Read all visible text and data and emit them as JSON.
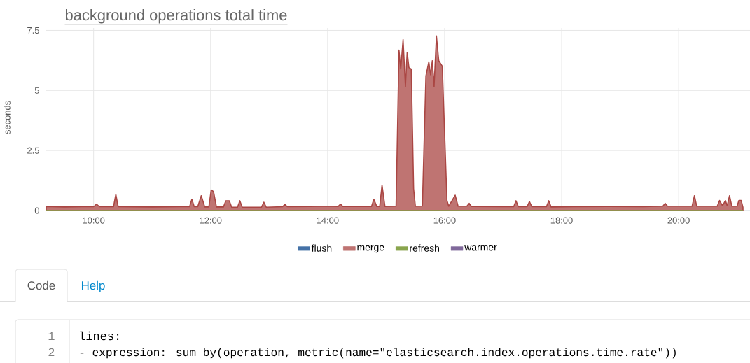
{
  "chart_data": {
    "type": "area",
    "title": "background operations total time",
    "ylabel": "seconds",
    "xlim": [
      9.19,
      21.22
    ],
    "ylim": [
      0,
      7.6
    ],
    "xticks": [
      {
        "value": 10,
        "label": "10:00"
      },
      {
        "value": 12,
        "label": "12:00"
      },
      {
        "value": 14,
        "label": "14:00"
      },
      {
        "value": 16,
        "label": "16:00"
      },
      {
        "value": 18,
        "label": "18:00"
      },
      {
        "value": 20,
        "label": "20:00"
      }
    ],
    "yticks": [
      0,
      2.5,
      5,
      7.5
    ],
    "grid": true,
    "legend": "bottom",
    "series": [
      {
        "name": "flush",
        "type": "line",
        "color": "#4572a7"
      },
      {
        "name": "merge",
        "color": "#aa4643",
        "x": [
          9.19,
          9.5,
          9.8,
          10.0,
          10.05,
          10.1,
          10.34,
          10.38,
          10.42,
          11.0,
          11.5,
          11.64,
          11.68,
          11.72,
          11.78,
          11.84,
          11.9,
          11.97,
          12.01,
          12.05,
          12.1,
          12.22,
          12.26,
          12.32,
          12.36,
          12.46,
          12.5,
          12.54,
          12.87,
          12.91,
          12.95,
          13.23,
          13.27,
          13.31,
          13.7,
          14.0,
          14.18,
          14.22,
          14.26,
          14.75,
          14.79,
          14.84,
          14.89,
          14.93,
          14.98,
          15.17,
          15.22,
          15.25,
          15.29,
          15.33,
          15.36,
          15.39,
          15.43,
          15.47,
          15.5,
          15.62,
          15.68,
          15.73,
          15.76,
          15.79,
          15.82,
          15.86,
          15.9,
          15.96,
          16.04,
          16.07,
          16.18,
          16.23,
          16.38,
          16.42,
          16.46,
          17.0,
          17.18,
          17.22,
          17.26,
          17.41,
          17.45,
          17.49,
          17.74,
          17.78,
          17.82,
          18.2,
          18.8,
          19.4,
          19.73,
          19.77,
          19.81,
          20.23,
          20.27,
          20.31,
          20.66,
          20.7,
          20.75,
          20.8,
          20.83,
          20.87,
          20.91,
          21.0,
          21.03,
          21.07,
          21.1
        ],
        "values": [
          0.17,
          0.15,
          0.16,
          0.16,
          0.27,
          0.16,
          0.16,
          0.67,
          0.16,
          0.15,
          0.16,
          0.16,
          0.47,
          0.16,
          0.16,
          0.62,
          0.15,
          0.15,
          0.86,
          0.79,
          0.15,
          0.15,
          0.41,
          0.41,
          0.14,
          0.14,
          0.41,
          0.14,
          0.14,
          0.35,
          0.14,
          0.16,
          0.26,
          0.16,
          0.17,
          0.18,
          0.17,
          0.27,
          0.17,
          0.17,
          0.47,
          0.17,
          0.17,
          1.06,
          0.17,
          0.18,
          6.68,
          5.89,
          7.12,
          5.16,
          6.59,
          5.95,
          5.89,
          0.91,
          0.18,
          0.19,
          5.6,
          6.19,
          5.65,
          6.24,
          5.16,
          7.27,
          6.24,
          6.01,
          0.42,
          0.18,
          0.64,
          0.18,
          0.18,
          0.3,
          0.17,
          0.16,
          0.16,
          0.41,
          0.16,
          0.16,
          0.38,
          0.16,
          0.16,
          0.41,
          0.15,
          0.16,
          0.17,
          0.16,
          0.18,
          0.3,
          0.18,
          0.18,
          0.62,
          0.18,
          0.18,
          0.42,
          0.2,
          0.42,
          0.2,
          0.62,
          0.18,
          0.18,
          0.42,
          0.42,
          0.13
        ]
      },
      {
        "name": "refresh",
        "type": "line",
        "color": "#89a54e",
        "x": [
          9.19,
          21.1
        ],
        "values": [
          0,
          0
        ]
      },
      {
        "name": "warmer",
        "type": "line",
        "color": "#80699b"
      }
    ],
    "annotations": [
      "Code",
      "Help",
      "1",
      "2",
      "lines:",
      "- expression: sum_by(operation, metric(name=\"elasticsearch.index.operations.time.rate\"))"
    ]
  }
}
